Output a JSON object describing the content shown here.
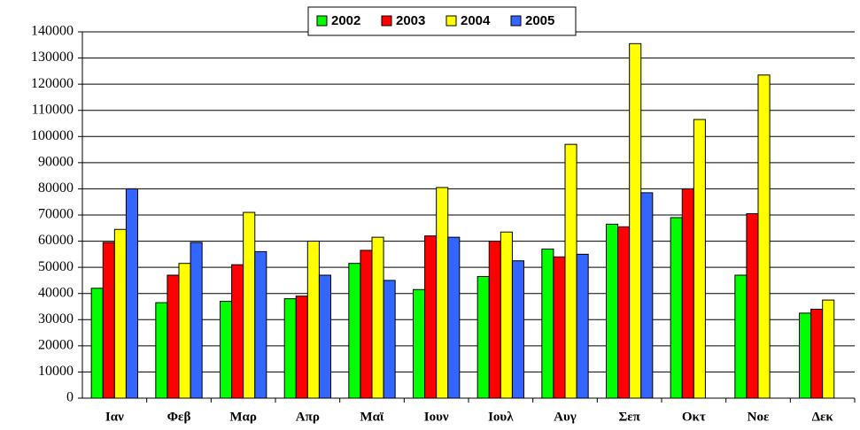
{
  "chart_data": {
    "type": "bar",
    "categories": [
      "Ιαν",
      "Φεβ",
      "Μαρ",
      "Απρ",
      "Μαϊ",
      "Ιουν",
      "Ιουλ",
      "Αυγ",
      "Σεπ",
      "Οκτ",
      "Νοε",
      "Δεκ"
    ],
    "series": [
      {
        "name": "2002",
        "color": "#00ff00",
        "values": [
          42000,
          36500,
          37000,
          38000,
          51500,
          41500,
          46500,
          57000,
          66500,
          69000,
          47000,
          32500
        ]
      },
      {
        "name": "2003",
        "color": "#ff0000",
        "values": [
          59500,
          47000,
          51000,
          39000,
          56500,
          62000,
          60000,
          54000,
          65500,
          80000,
          70500,
          34000
        ]
      },
      {
        "name": "2004",
        "color": "#ffff00",
        "values": [
          64500,
          51500,
          71000,
          60000,
          61500,
          80500,
          63500,
          97000,
          135500,
          106500,
          123500,
          37500
        ]
      },
      {
        "name": "2005",
        "color": "#3366ff",
        "values": [
          80000,
          59500,
          56000,
          47000,
          45000,
          61500,
          52500,
          55000,
          78500,
          null,
          null,
          null
        ]
      }
    ],
    "ylim": [
      0,
      140000
    ],
    "yticks": [
      0,
      10000,
      20000,
      30000,
      40000,
      50000,
      60000,
      70000,
      80000,
      90000,
      100000,
      110000,
      120000,
      130000,
      140000
    ],
    "grid": true,
    "legend": "top"
  }
}
